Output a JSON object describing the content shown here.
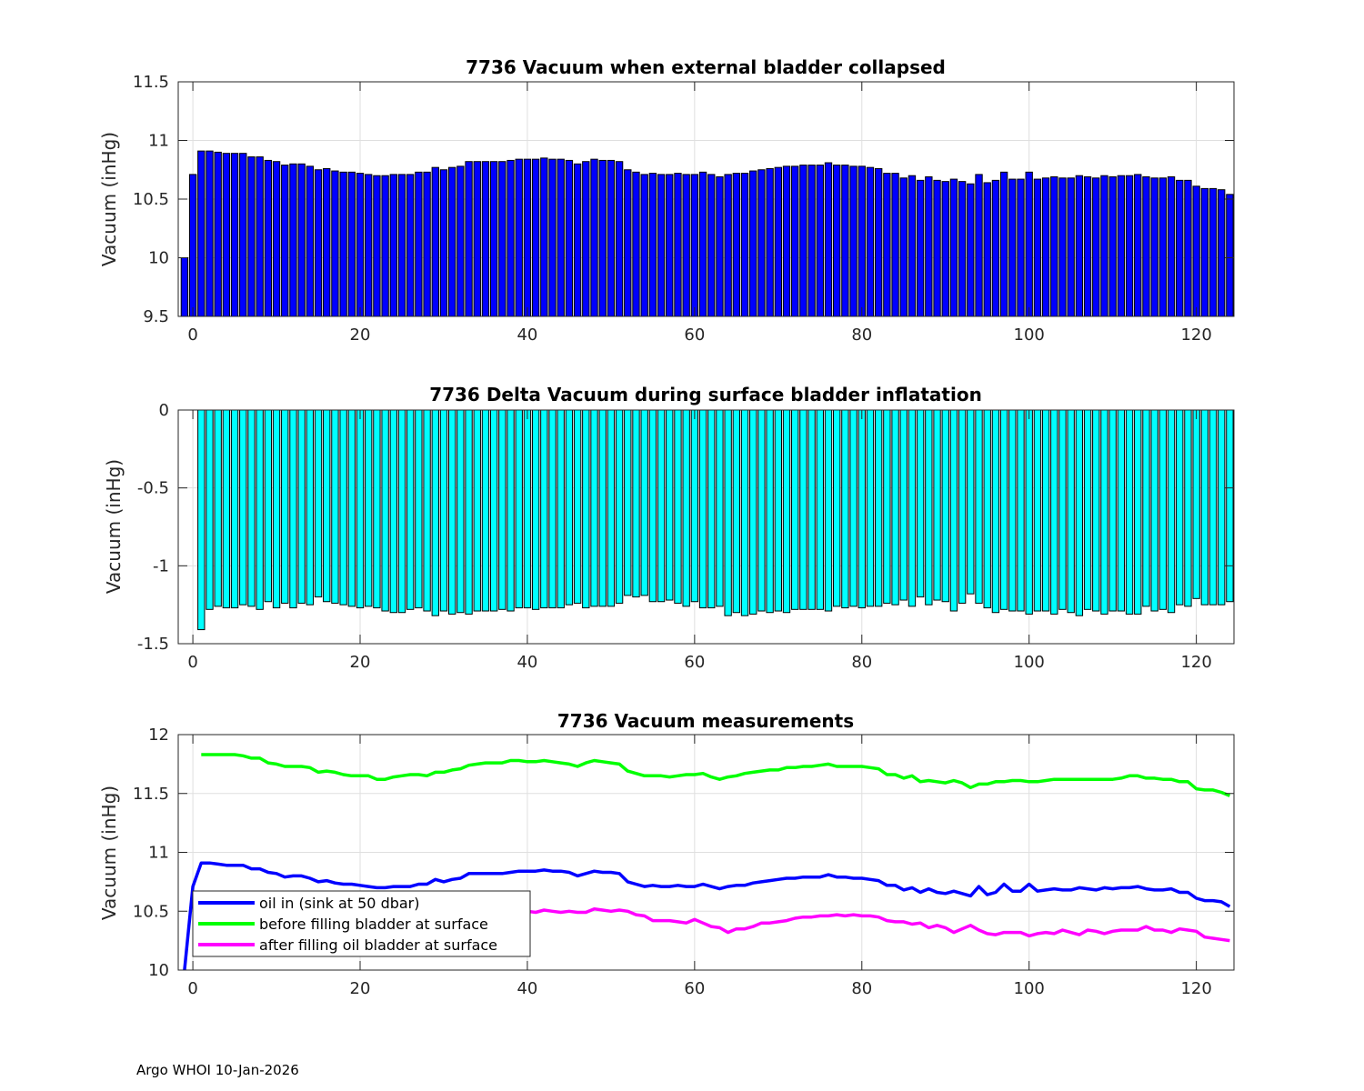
{
  "footer": "Argo WHOI 10-Jan-2026",
  "chart_data": [
    {
      "type": "bar",
      "title": "7736 Vacuum when external bladder collapsed",
      "xlabel": "",
      "ylabel": "Vacuum (inHg)",
      "xlim": [
        -1.75,
        124.5
      ],
      "ylim": [
        9.5,
        11.5
      ],
      "grid": true,
      "xticks": [
        0,
        20,
        40,
        60,
        80,
        100,
        120
      ],
      "xtick_labels": [
        "0",
        "20",
        "40",
        "60",
        "80",
        "100",
        "120"
      ],
      "yticks": [
        9.5,
        10,
        10.5,
        11,
        11.5
      ],
      "ytick_labels": [
        "9.5",
        "10",
        "10.5",
        "11",
        "11.5"
      ],
      "color": "#0000ff",
      "x_start": -1,
      "values": [
        10.0,
        10.71,
        10.91,
        10.91,
        10.9,
        10.89,
        10.89,
        10.89,
        10.86,
        10.86,
        10.83,
        10.82,
        10.79,
        10.8,
        10.8,
        10.78,
        10.75,
        10.76,
        10.74,
        10.73,
        10.73,
        10.72,
        10.71,
        10.7,
        10.7,
        10.71,
        10.71,
        10.71,
        10.73,
        10.73,
        10.77,
        10.75,
        10.77,
        10.78,
        10.82,
        10.82,
        10.82,
        10.82,
        10.82,
        10.83,
        10.84,
        10.84,
        10.84,
        10.85,
        10.84,
        10.84,
        10.83,
        10.8,
        10.82,
        10.84,
        10.83,
        10.83,
        10.82,
        10.75,
        10.73,
        10.71,
        10.72,
        10.71,
        10.71,
        10.72,
        10.71,
        10.71,
        10.73,
        10.71,
        10.69,
        10.71,
        10.72,
        10.72,
        10.74,
        10.75,
        10.76,
        10.77,
        10.78,
        10.78,
        10.79,
        10.79,
        10.79,
        10.81,
        10.79,
        10.79,
        10.78,
        10.78,
        10.77,
        10.76,
        10.72,
        10.72,
        10.68,
        10.7,
        10.66,
        10.69,
        10.66,
        10.65,
        10.67,
        10.65,
        10.63,
        10.71,
        10.64,
        10.66,
        10.73,
        10.67,
        10.67,
        10.73,
        10.67,
        10.68,
        10.69,
        10.68,
        10.68,
        10.7,
        10.69,
        10.68,
        10.7,
        10.69,
        10.7,
        10.7,
        10.71,
        10.69,
        10.68,
        10.68,
        10.69,
        10.66,
        10.66,
        10.61,
        10.59,
        10.59,
        10.58,
        10.54
      ]
    },
    {
      "type": "bar",
      "title": "7736 Delta Vacuum during surface bladder inflatation",
      "xlabel": "",
      "ylabel": "Vacuum (inHg)",
      "xlim": [
        -1.75,
        124.5
      ],
      "ylim": [
        -1.5,
        0
      ],
      "grid": true,
      "xticks": [
        0,
        20,
        40,
        60,
        80,
        100,
        120
      ],
      "xtick_labels": [
        "0",
        "20",
        "40",
        "60",
        "80",
        "100",
        "120"
      ],
      "yticks": [
        -1.5,
        -1,
        -0.5,
        0
      ],
      "ytick_labels": [
        "-1.5",
        "-1",
        "-0.5",
        "0"
      ],
      "color": "#00ffff",
      "x_start": -1,
      "values": [
        null,
        null,
        -1.41,
        -1.28,
        -1.26,
        -1.27,
        -1.27,
        -1.25,
        -1.26,
        -1.28,
        -1.23,
        -1.27,
        -1.24,
        -1.27,
        -1.24,
        -1.25,
        -1.2,
        -1.23,
        -1.24,
        -1.25,
        -1.26,
        -1.27,
        -1.26,
        -1.27,
        -1.29,
        -1.3,
        -1.3,
        -1.28,
        -1.27,
        -1.29,
        -1.32,
        -1.29,
        -1.31,
        -1.3,
        -1.31,
        -1.29,
        -1.29,
        -1.29,
        -1.28,
        -1.29,
        -1.27,
        -1.27,
        -1.28,
        -1.27,
        -1.27,
        -1.27,
        -1.25,
        -1.24,
        -1.27,
        -1.26,
        -1.26,
        -1.26,
        -1.24,
        -1.19,
        -1.2,
        -1.19,
        -1.23,
        -1.23,
        -1.22,
        -1.24,
        -1.26,
        -1.23,
        -1.27,
        -1.27,
        -1.26,
        -1.32,
        -1.3,
        -1.32,
        -1.31,
        -1.29,
        -1.3,
        -1.29,
        -1.3,
        -1.28,
        -1.28,
        -1.28,
        -1.28,
        -1.29,
        -1.26,
        -1.27,
        -1.26,
        -1.27,
        -1.26,
        -1.26,
        -1.24,
        -1.25,
        -1.22,
        -1.26,
        -1.2,
        -1.25,
        -1.22,
        -1.23,
        -1.29,
        -1.24,
        -1.18,
        -1.24,
        -1.27,
        -1.3,
        -1.28,
        -1.29,
        -1.29,
        -1.31,
        -1.29,
        -1.29,
        -1.31,
        -1.28,
        -1.3,
        -1.32,
        -1.28,
        -1.29,
        -1.31,
        -1.29,
        -1.29,
        -1.31,
        -1.31,
        -1.26,
        -1.29,
        -1.28,
        -1.3,
        -1.25,
        -1.26,
        -1.21,
        -1.25,
        -1.25,
        -1.25,
        -1.23
      ]
    },
    {
      "type": "line",
      "title": "7736 Vacuum measurements",
      "xlabel": "",
      "ylabel": "Vacuum (inHg)",
      "xlim": [
        -1.75,
        124.5
      ],
      "ylim": [
        10,
        12
      ],
      "grid": true,
      "legend_position": "bottom-left",
      "xticks": [
        0,
        20,
        40,
        60,
        80,
        100,
        120
      ],
      "xtick_labels": [
        "0",
        "20",
        "40",
        "60",
        "80",
        "100",
        "120"
      ],
      "yticks": [
        10,
        10.5,
        11,
        11.5,
        12
      ],
      "ytick_labels": [
        "10",
        "10.5",
        "11",
        "11.5",
        "12"
      ],
      "x_start": -1,
      "series": [
        {
          "name": "oil in (sink at 50 dbar)",
          "color": "#0000ff",
          "values": [
            10.0,
            10.71,
            10.91,
            10.91,
            10.9,
            10.89,
            10.89,
            10.89,
            10.86,
            10.86,
            10.83,
            10.82,
            10.79,
            10.8,
            10.8,
            10.78,
            10.75,
            10.76,
            10.74,
            10.73,
            10.73,
            10.72,
            10.71,
            10.7,
            10.7,
            10.71,
            10.71,
            10.71,
            10.73,
            10.73,
            10.77,
            10.75,
            10.77,
            10.78,
            10.82,
            10.82,
            10.82,
            10.82,
            10.82,
            10.83,
            10.84,
            10.84,
            10.84,
            10.85,
            10.84,
            10.84,
            10.83,
            10.8,
            10.82,
            10.84,
            10.83,
            10.83,
            10.82,
            10.75,
            10.73,
            10.71,
            10.72,
            10.71,
            10.71,
            10.72,
            10.71,
            10.71,
            10.73,
            10.71,
            10.69,
            10.71,
            10.72,
            10.72,
            10.74,
            10.75,
            10.76,
            10.77,
            10.78,
            10.78,
            10.79,
            10.79,
            10.79,
            10.81,
            10.79,
            10.79,
            10.78,
            10.78,
            10.77,
            10.76,
            10.72,
            10.72,
            10.68,
            10.7,
            10.66,
            10.69,
            10.66,
            10.65,
            10.67,
            10.65,
            10.63,
            10.71,
            10.64,
            10.66,
            10.73,
            10.67,
            10.67,
            10.73,
            10.67,
            10.68,
            10.69,
            10.68,
            10.68,
            10.7,
            10.69,
            10.68,
            10.7,
            10.69,
            10.7,
            10.7,
            10.71,
            10.69,
            10.68,
            10.68,
            10.69,
            10.66,
            10.66,
            10.61,
            10.59,
            10.59,
            10.58,
            10.54
          ]
        },
        {
          "name": "before filling bladder at surface",
          "color": "#00ff00",
          "values": [
            null,
            null,
            11.83,
            11.83,
            11.83,
            11.83,
            11.83,
            11.82,
            11.8,
            11.8,
            11.76,
            11.75,
            11.73,
            11.73,
            11.73,
            11.72,
            11.68,
            11.69,
            11.68,
            11.66,
            11.65,
            11.65,
            11.65,
            11.62,
            11.62,
            11.64,
            11.65,
            11.66,
            11.66,
            11.65,
            11.68,
            11.68,
            11.7,
            11.71,
            11.74,
            11.75,
            11.76,
            11.76,
            11.76,
            11.78,
            11.78,
            11.77,
            11.77,
            11.78,
            11.77,
            11.76,
            11.75,
            11.73,
            11.76,
            11.78,
            11.77,
            11.76,
            11.75,
            11.69,
            11.67,
            11.65,
            11.65,
            11.65,
            11.64,
            11.65,
            11.66,
            11.66,
            11.67,
            11.64,
            11.62,
            11.64,
            11.65,
            11.67,
            11.68,
            11.69,
            11.7,
            11.7,
            11.72,
            11.72,
            11.73,
            11.73,
            11.74,
            11.75,
            11.73,
            11.73,
            11.73,
            11.73,
            11.72,
            11.71,
            11.66,
            11.66,
            11.63,
            11.65,
            11.6,
            11.61,
            11.6,
            11.59,
            11.61,
            11.59,
            11.55,
            11.58,
            11.58,
            11.6,
            11.6,
            11.61,
            11.61,
            11.6,
            11.6,
            11.61,
            11.62,
            11.62,
            11.62,
            11.62,
            11.62,
            11.62,
            11.62,
            11.62,
            11.63,
            11.65,
            11.65,
            11.63,
            11.63,
            11.62,
            11.62,
            11.6,
            11.6,
            11.54,
            11.53,
            11.53,
            11.51,
            11.48
          ]
        },
        {
          "name": "after filling oil bladder at surface",
          "color": "#ff00ff",
          "values": [
            null,
            null,
            10.42,
            10.55,
            10.57,
            10.56,
            10.56,
            10.56,
            10.54,
            10.52,
            10.53,
            10.48,
            10.49,
            10.46,
            10.49,
            10.47,
            10.48,
            10.46,
            10.44,
            10.41,
            10.39,
            10.38,
            10.39,
            10.35,
            10.33,
            10.34,
            10.35,
            10.38,
            10.39,
            10.36,
            10.36,
            10.39,
            10.39,
            10.41,
            10.43,
            10.46,
            10.47,
            10.47,
            10.48,
            10.49,
            10.51,
            10.5,
            10.49,
            10.51,
            10.5,
            10.49,
            10.5,
            10.49,
            10.49,
            10.52,
            10.51,
            10.5,
            10.51,
            10.5,
            10.47,
            10.46,
            10.42,
            10.42,
            10.42,
            10.41,
            10.4,
            10.43,
            10.4,
            10.37,
            10.36,
            10.32,
            10.35,
            10.35,
            10.37,
            10.4,
            10.4,
            10.41,
            10.42,
            10.44,
            10.45,
            10.45,
            10.46,
            10.46,
            10.47,
            10.46,
            10.47,
            10.46,
            10.46,
            10.45,
            10.42,
            10.41,
            10.41,
            10.39,
            10.4,
            10.36,
            10.38,
            10.36,
            10.32,
            10.35,
            10.38,
            10.34,
            10.31,
            10.3,
            10.32,
            10.32,
            10.32,
            10.29,
            10.31,
            10.32,
            10.31,
            10.34,
            10.32,
            10.3,
            10.34,
            10.33,
            10.31,
            10.33,
            10.34,
            10.34,
            10.34,
            10.37,
            10.34,
            10.34,
            10.32,
            10.35,
            10.34,
            10.33,
            10.28,
            10.27,
            10.26,
            10.25
          ]
        }
      ]
    }
  ]
}
